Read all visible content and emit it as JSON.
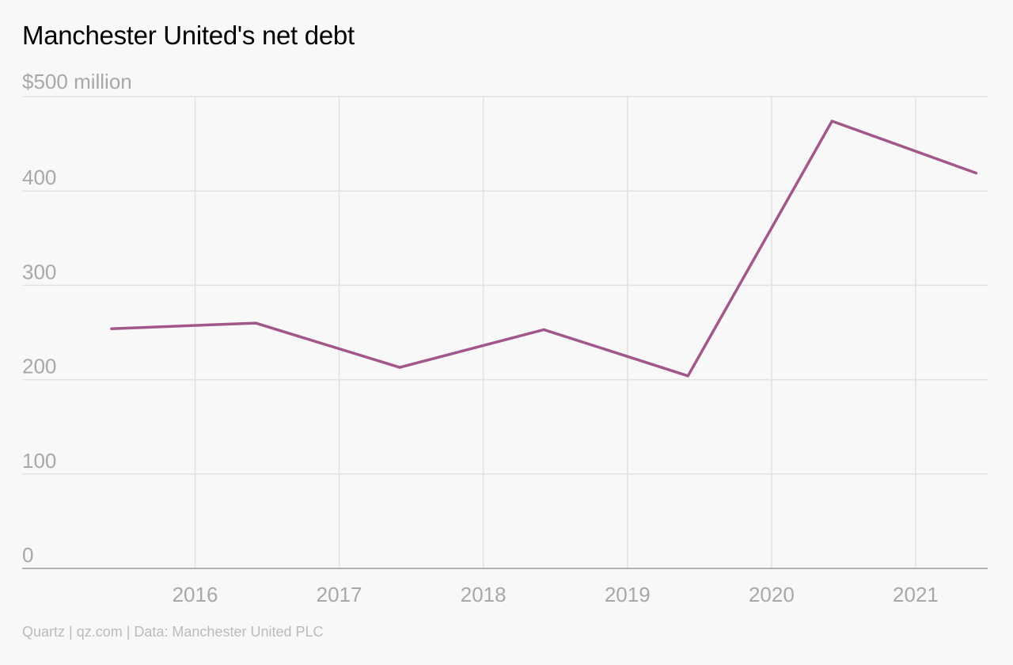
{
  "chart_data": {
    "type": "line",
    "title": "Manchester United's net debt",
    "ylabel": "",
    "xlabel": "",
    "y_unit_label": "$500 million",
    "ylim": [
      0,
      500
    ],
    "xlim": [
      2014.8,
      2021.5
    ],
    "y_ticks": [
      0,
      100,
      200,
      300,
      400
    ],
    "x_ticks": [
      2016,
      2017,
      2018,
      2019,
      2020,
      2021
    ],
    "x_tick_labels": [
      "2016",
      "2017",
      "2018",
      "2019",
      "2020",
      "2021"
    ],
    "grid": true,
    "series": [
      {
        "x": [
          2015.42,
          2016.42,
          2017.42,
          2018.42,
          2019.42,
          2020.42,
          2021.42
        ],
        "values": [
          254,
          260,
          213,
          253,
          204,
          474,
          419
        ]
      }
    ],
    "source": "Quartz | qz.com | Data: Manchester United PLC"
  },
  "colors": {
    "background": "#f8f8f8",
    "line": "#a2578a",
    "grid": "#e2e2e2",
    "axis": "#9b9b9b",
    "tick_text": "#a8a8a8",
    "source_text": "#bbbbbb",
    "title_text": "#000000"
  }
}
